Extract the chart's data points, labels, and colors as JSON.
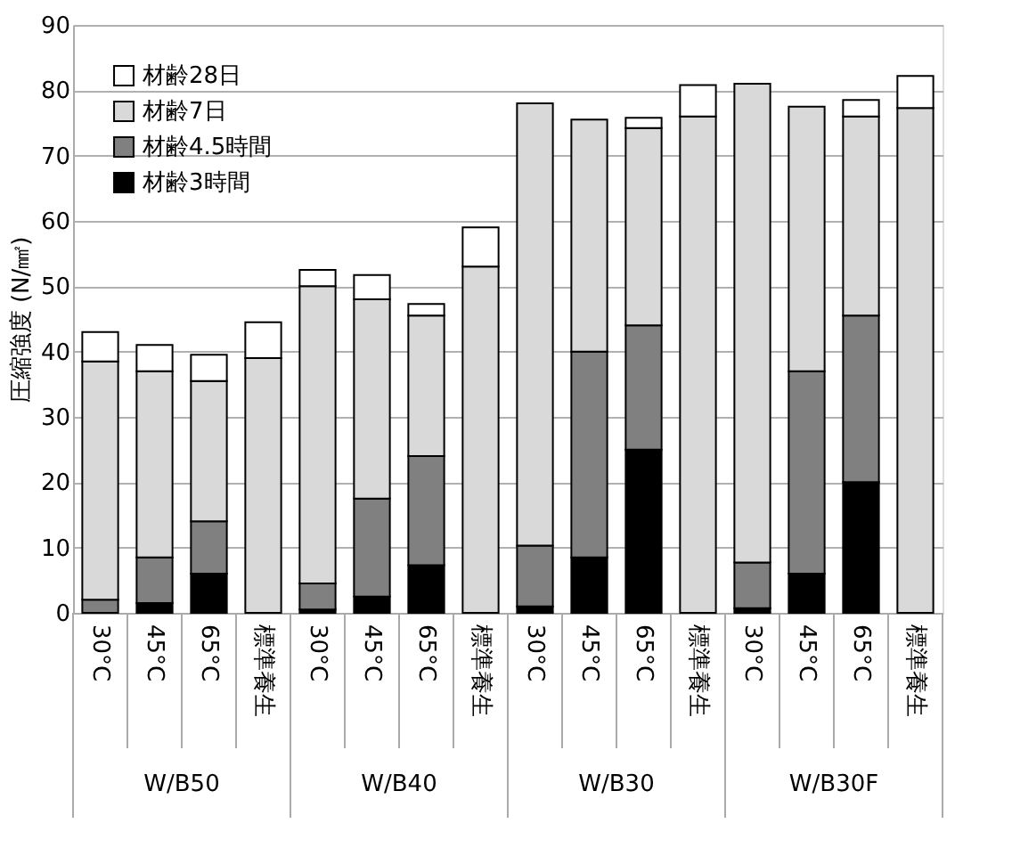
{
  "chart_data": {
    "type": "bar",
    "stacked": true,
    "categories": [
      "30°C",
      "45°C",
      "65°C",
      "標準養生",
      "30°C",
      "45°C",
      "65°C",
      "標準養生",
      "30°C",
      "45°C",
      "65°C",
      "標準養生",
      "30°C",
      "45°C",
      "65°C",
      "標準養生"
    ],
    "annotations": [
      "W/B50",
      "W/B40",
      "W/B30",
      "W/B30F"
    ],
    "ylabel": "圧縮強度 (N/㎟)",
    "ylim": [
      0,
      90
    ],
    "yticks": [
      0,
      10,
      20,
      30,
      40,
      50,
      60,
      70,
      80,
      90
    ],
    "grid": "y",
    "legend": "top left",
    "series": [
      {
        "name": "材齢3時間",
        "color": "#000000",
        "values": [
          null,
          1.5,
          6,
          null,
          0.5,
          2.5,
          7.3,
          null,
          1,
          8.5,
          25,
          null,
          0.7,
          6,
          20,
          null
        ]
      },
      {
        "name": "材齢4.5時間",
        "color": "#808080",
        "values": [
          2,
          7,
          8,
          null,
          4,
          15,
          16.7,
          null,
          9.3,
          31.5,
          19,
          null,
          7,
          31,
          25.5,
          null
        ]
      },
      {
        "name": "材齢7日",
        "color": "#d9d9d9",
        "values": [
          36.5,
          28.5,
          21.5,
          39,
          45.5,
          30.5,
          21.5,
          53,
          67.7,
          35.5,
          30.2,
          76,
          73.3,
          40.5,
          30.5,
          77.3
        ]
      },
      {
        "name": "材齢28日",
        "color": "#ffffff",
        "values": [
          4.5,
          4,
          4,
          5.5,
          2.5,
          3.7,
          1.8,
          6,
          null,
          null,
          1.6,
          4.8,
          null,
          null,
          2.5,
          4.9
        ]
      }
    ]
  }
}
